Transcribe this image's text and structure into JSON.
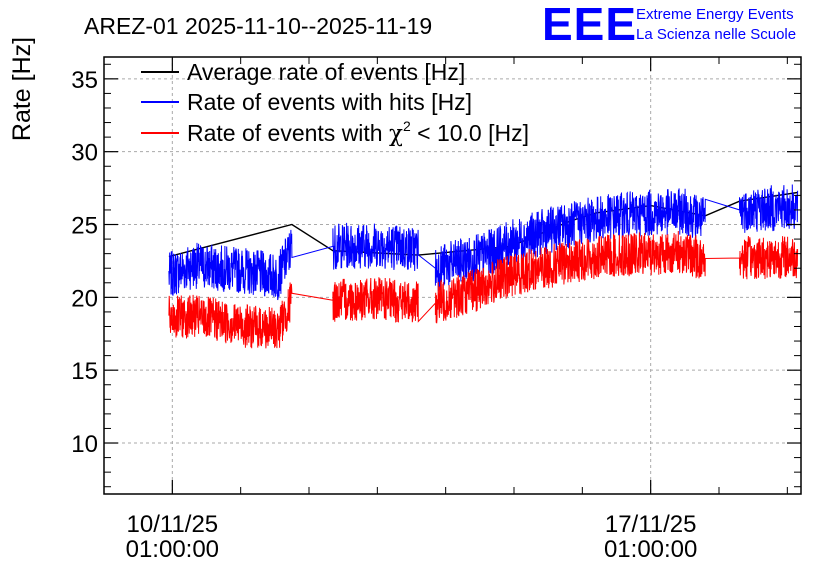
{
  "chart_data": {
    "type": "line",
    "title": "AREZ-01 2025-11-10--2025-11-19",
    "logo": {
      "text": "EEE",
      "line1": "Extreme Energy Events",
      "line2": "La Scienza nelle Scuole",
      "color": "#0000ff"
    },
    "xlabel": "",
    "ylabel": "Rate [Hz]",
    "ylim": [
      6.5,
      36.5
    ],
    "y_ticks": [
      10,
      15,
      20,
      25,
      30,
      35
    ],
    "x_range_days": [
      -1.0,
      9.2
    ],
    "x_ticks": [
      {
        "day": 0,
        "date": "10/11/25",
        "time": "01:00:00"
      },
      {
        "day": 7,
        "date": "17/11/25",
        "time": "01:00:00"
      }
    ],
    "grid": true,
    "legend_position": "top-left",
    "series": [
      {
        "name": "Average rate of events [Hz]",
        "color": "#000000",
        "x": [
          -0.05,
          1.75,
          2.35,
          3.6,
          4.95,
          5.8,
          6.2,
          7.0,
          7.8,
          8.3,
          9.15
        ],
        "values": [
          22.8,
          25.0,
          23.2,
          22.9,
          23.5,
          25.2,
          25.8,
          26.3,
          25.6,
          26.6,
          27.2
        ]
      },
      {
        "name": "Rate of events with hits [Hz]",
        "color": "#0000ff",
        "x": [
          -0.05,
          0.3,
          0.7,
          1.1,
          1.55,
          1.75,
          2.35,
          3.0,
          3.6,
          3.85,
          4.5,
          5.0,
          5.5,
          6.0,
          6.5,
          7.0,
          7.5,
          7.8,
          8.3,
          9.15
        ],
        "values": [
          21.5,
          22.2,
          22.0,
          21.8,
          21.4,
          23.5,
          23.5,
          23.6,
          23.3,
          22.0,
          22.8,
          23.8,
          24.6,
          25.2,
          25.6,
          25.8,
          25.9,
          25.3,
          26.0,
          26.2
        ],
        "noise_amp": 1.6
      },
      {
        "name": "Rate of events with χ² < 10.0 [Hz]",
        "legend_main": "Rate of events with ",
        "legend_chi": "χ",
        "legend_sup": "2",
        "legend_rest": " < 10.0 [Hz]",
        "color": "#ff0000",
        "x": [
          -0.05,
          0.3,
          0.7,
          1.1,
          1.55,
          1.75,
          2.35,
          3.0,
          3.6,
          3.85,
          4.5,
          5.0,
          5.5,
          6.0,
          6.5,
          7.0,
          7.5,
          7.8,
          8.3,
          9.15
        ],
        "values": [
          18.6,
          18.7,
          18.4,
          18.0,
          17.8,
          19.8,
          19.8,
          19.9,
          19.6,
          19.6,
          20.6,
          21.6,
          22.1,
          22.6,
          22.9,
          23.0,
          23.1,
          22.5,
          22.7,
          22.8
        ],
        "noise_amp": 1.5
      }
    ]
  }
}
